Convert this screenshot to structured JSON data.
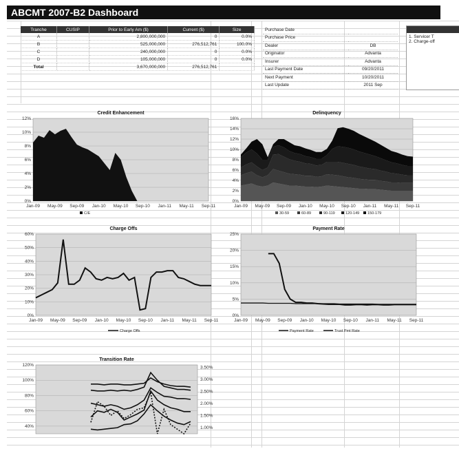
{
  "title": "ABCMT 2007-B2 Dashboard",
  "tranche_table": {
    "headers": [
      "Tranche",
      "CUSIP",
      "Prior to Early Am ($)",
      "Current ($)",
      "Size"
    ],
    "rows": [
      [
        "A",
        "",
        "2,800,000,000",
        "0",
        "0.0%"
      ],
      [
        "B",
        "",
        "525,000,000",
        "276,512,761",
        "100.0%"
      ],
      [
        "C",
        "",
        "240,000,000",
        "0",
        "0.0%"
      ],
      [
        "D",
        "",
        "105,000,000",
        "0",
        "0.0%"
      ],
      [
        "Total",
        "",
        "3,670,000,000",
        "276,512,761",
        ""
      ]
    ]
  },
  "deal_info": [
    {
      "label": "Purchase Date",
      "value": ""
    },
    {
      "label": "Purchase Price",
      "value": ""
    },
    {
      "label": "Dealer",
      "value": "DB"
    },
    {
      "label": "Originator",
      "value": "Advanta"
    },
    {
      "label": "Insurer",
      "value": "Advanta"
    },
    {
      "label": "Last Payment Date",
      "value": "09/20/2011"
    },
    {
      "label": "Next Payment",
      "value": "10/20/2011"
    },
    {
      "label": "Last Update",
      "value": "2011 Sep"
    }
  ],
  "notes": [
    "1. Servicer T",
    "2. Charge-off"
  ],
  "colors": {
    "plot_bg": "#d9d9d9",
    "dark": "#111111",
    "header": "#333333"
  },
  "chart_data": [
    {
      "type": "area",
      "title": "Credit Enhancement",
      "y_ticks": [
        "0%",
        "2%",
        "4%",
        "6%",
        "8%",
        "10%",
        "12%"
      ],
      "ylim": [
        0,
        12
      ],
      "x_ticks": [
        "Jan-09",
        "May-09",
        "Sep-09",
        "Jan-10",
        "May-10",
        "Sep-10",
        "Jan-11",
        "May-11",
        "Sep-11"
      ],
      "legend": [
        "C/E"
      ],
      "series": [
        {
          "name": "C/E",
          "x": [
            0,
            1,
            2,
            3,
            4,
            5,
            6,
            7,
            8,
            9,
            10,
            11,
            12,
            13,
            14,
            15,
            16,
            17,
            18,
            19,
            20,
            21,
            22,
            23,
            24,
            25,
            26,
            27,
            28,
            29,
            30,
            31,
            32
          ],
          "values": [
            8.5,
            9.5,
            9.2,
            10.3,
            9.7,
            10.2,
            10.5,
            9.3,
            8.2,
            7.8,
            7.5,
            7.0,
            6.5,
            5.5,
            4.5,
            7.0,
            6.0,
            3.5,
            1.5,
            0,
            0,
            0,
            0,
            0,
            0,
            0,
            0,
            0,
            0,
            0,
            0,
            0,
            0
          ]
        }
      ]
    },
    {
      "type": "area",
      "title": "Delinquency",
      "y_ticks": [
        "0%",
        "2%",
        "4%",
        "6%",
        "8%",
        "10%",
        "12%",
        "14%",
        "16%"
      ],
      "ylim": [
        0,
        16
      ],
      "x_ticks": [
        "Jan-09",
        "May-09",
        "Sep-09",
        "Jan-10",
        "May-10",
        "Sep-10",
        "Jan-11",
        "May-11",
        "Sep-11"
      ],
      "legend": [
        "30-59",
        "60-89",
        "90-119",
        "120-149",
        "150-179"
      ],
      "series": [
        {
          "name": "30-59",
          "values": [
            3,
            3.2,
            3.4,
            3,
            2.8,
            3,
            3.6,
            3.4,
            3.2,
            3,
            3,
            2.9,
            2.8,
            2.8,
            2.7,
            2.8,
            3,
            2.9,
            2.8,
            2.7,
            2.6,
            2.5,
            2.4,
            2.4,
            2.3,
            2.3,
            2.2,
            2.1,
            2.0,
            2.0,
            2.0,
            2.0,
            2.0
          ]
        },
        {
          "name": "60-89",
          "values": [
            2,
            2.2,
            2.3,
            2,
            1.8,
            2,
            2.6,
            2.5,
            2.4,
            2.3,
            2.2,
            2.2,
            2.1,
            2.1,
            2.0,
            2.0,
            2.2,
            2.2,
            2.2,
            2.1,
            2.0,
            2.0,
            1.9,
            1.8,
            1.8,
            1.8,
            1.7,
            1.7,
            1.6,
            1.6,
            1.5,
            1.5,
            1.5
          ]
        },
        {
          "name": "90-119",
          "values": [
            1.5,
            1.7,
            1.8,
            1.7,
            1.4,
            1.5,
            2.8,
            3.2,
            3,
            2.8,
            2.6,
            2.5,
            2.4,
            2.3,
            2.2,
            2.2,
            2.4,
            2.5,
            2.6,
            2.6,
            2.6,
            2.5,
            2.4,
            2.3,
            2.2,
            2.1,
            2.0,
            1.9,
            1.8,
            1.7,
            1.6,
            1.5,
            1.5
          ]
        },
        {
          "name": "120-149",
          "values": [
            2,
            2.3,
            2.5,
            2.5,
            2,
            1.5,
            1.5,
            1.7,
            1.8,
            1.6,
            1.5,
            1.5,
            1.4,
            1.3,
            1.3,
            1.2,
            1.3,
            2.5,
            3,
            3.1,
            3.1,
            3.0,
            2.9,
            2.8,
            2.7,
            2.5,
            2.4,
            2.2,
            2.1,
            2.0,
            1.9,
            1.8,
            1.8
          ]
        },
        {
          "name": "150-179",
          "values": [
            0.5,
            0.8,
            1.5,
            2.8,
            3.0,
            0.5,
            0.5,
            1.2,
            1.6,
            1.7,
            1.5,
            1.5,
            1.5,
            1.4,
            1.3,
            1.3,
            1.2,
            1.6,
            3.5,
            3.8,
            3.7,
            3.6,
            3.4,
            3.2,
            3.0,
            2.8,
            2.6,
            2.4,
            2.2,
            2.1,
            2.0,
            1.9,
            1.8
          ]
        }
      ]
    },
    {
      "type": "line",
      "title": "Charge Offs",
      "y_ticks": [
        "0%",
        "10%",
        "20%",
        "30%",
        "40%",
        "50%",
        "60%"
      ],
      "ylim": [
        0,
        60
      ],
      "x_ticks": [
        "Jan-09",
        "May-09",
        "Sep-09",
        "Jan-10",
        "May-10",
        "Sep-10",
        "Jan-11",
        "May-11",
        "Sep-11"
      ],
      "legend": [
        "Charge Offs"
      ],
      "series": [
        {
          "name": "Charge Offs",
          "values": [
            13,
            15,
            17,
            19,
            24,
            56,
            23,
            23,
            26,
            35,
            32,
            27,
            26,
            28,
            27,
            28,
            31,
            26,
            28,
            4,
            5,
            28,
            32,
            32,
            33,
            33,
            28,
            27,
            25,
            23,
            22,
            22,
            22
          ]
        }
      ]
    },
    {
      "type": "line",
      "title": "Payment Rate",
      "y_ticks": [
        "0%",
        "5%",
        "10%",
        "15%",
        "20%",
        "25%"
      ],
      "ylim": [
        0,
        25
      ],
      "x_ticks": [
        "Jan-09",
        "May-09",
        "Sep-09",
        "Jan-10",
        "May-10",
        "Sep-10",
        "Jan-11",
        "May-11",
        "Sep-11"
      ],
      "legend": [
        "Payment Rate",
        "Trust Pmt Rate"
      ],
      "series": [
        {
          "name": "Payment Rate",
          "values": [
            null,
            null,
            null,
            null,
            null,
            19,
            19,
            16,
            8,
            5,
            4,
            4,
            3.8,
            3.8,
            3.6,
            3.5,
            3.4,
            3.4,
            3.4,
            3.2,
            3.2,
            3.3,
            3.3,
            3.2,
            3.3,
            3.3,
            3.2,
            3.2,
            3.3,
            3.3,
            3.3,
            3.3,
            3.3
          ]
        },
        {
          "name": "Trust Pmt Rate",
          "values": [
            3.8,
            3.8,
            3.8,
            3.8,
            3.8,
            3.7,
            3.7,
            3.7,
            3.7,
            3.7,
            3.6,
            3.6,
            3.6,
            3.6,
            3.6,
            3.6,
            3.6,
            3.6,
            3.5,
            3.5,
            3.5,
            3.5,
            3.5,
            3.5,
            3.5,
            3.4,
            3.4,
            3.4,
            3.4,
            3.4,
            3.4,
            3.4,
            3.4
          ]
        }
      ]
    },
    {
      "type": "line",
      "title": "Transition Rate",
      "y_ticks": [
        "40%",
        "60%",
        "80%",
        "100%",
        "120%"
      ],
      "ylim": [
        30,
        120
      ],
      "y2_ticks": [
        "1.00%",
        "1.50%",
        "2.00%",
        "2.50%",
        "3.00%",
        "3.50%"
      ],
      "series": [
        {
          "values": [
            95,
            95,
            94,
            95,
            95,
            94,
            94,
            95,
            96,
            103,
            98,
            95,
            93,
            92,
            92,
            91
          ]
        },
        {
          "values": [
            87,
            86,
            86,
            87,
            86,
            87,
            86,
            88,
            91,
            110,
            100,
            92,
            90,
            88,
            88,
            87
          ]
        },
        {
          "values": [
            70,
            68,
            66,
            68,
            66,
            62,
            64,
            68,
            74,
            90,
            84,
            79,
            78,
            76,
            76,
            75
          ]
        },
        {
          "values": [
            52,
            60,
            58,
            62,
            58,
            48,
            52,
            56,
            61,
            86,
            74,
            68,
            64,
            62,
            59,
            59
          ]
        },
        {
          "values": [
            36,
            35,
            36,
            37,
            38,
            42,
            43,
            47,
            56,
            68,
            60,
            53,
            48,
            44,
            42,
            46
          ]
        },
        {
          "values": [
            45,
            72,
            66,
            54,
            60,
            50,
            55,
            62,
            64,
            84,
            30,
            62,
            42,
            36,
            30,
            44
          ]
        }
      ]
    }
  ]
}
